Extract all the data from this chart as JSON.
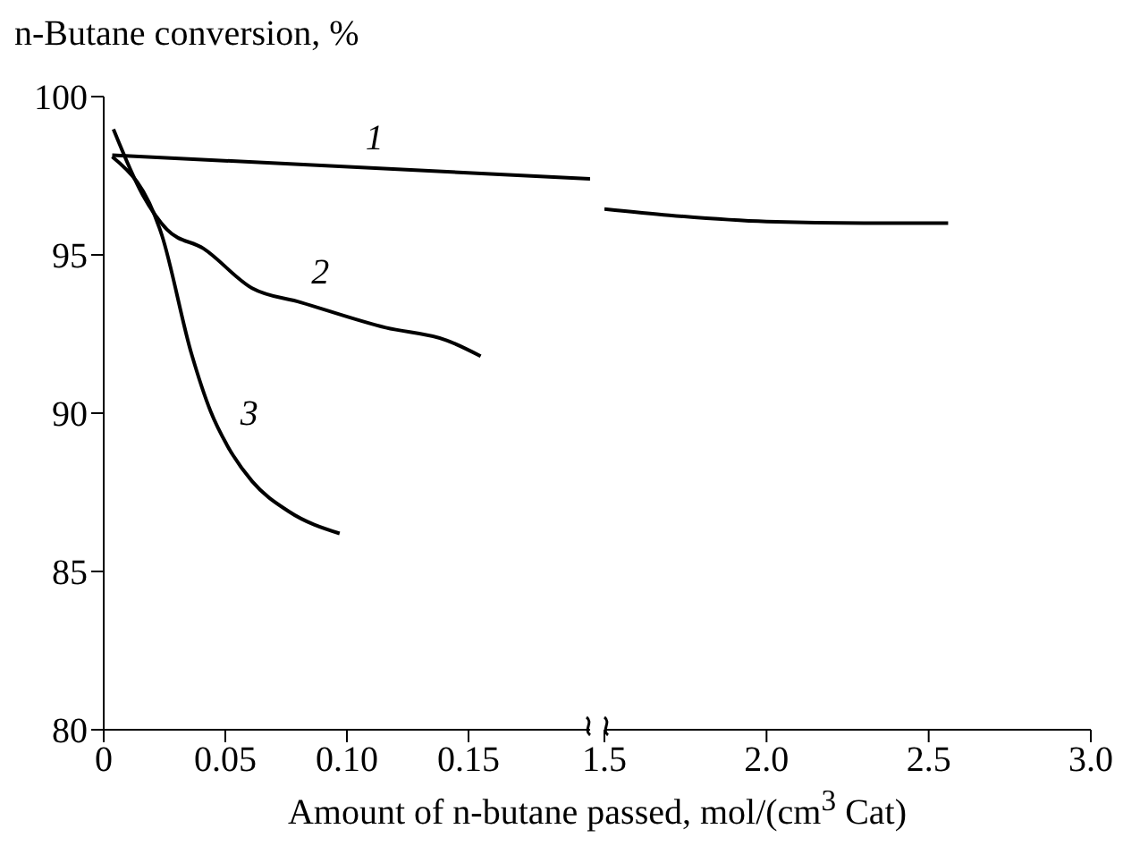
{
  "chart_data": [
    {
      "type": "line",
      "ylabel": "n-Butane conversion, %",
      "xlabel": "Amount of n-butane passed, mol/(cm$^{3}$ Cat)",
      "xlim": [
        0,
        0.2
      ],
      "xticks": [
        0,
        0.05,
        {
          "value": 0.1,
          "label": "0.10"
        },
        0.15
      ],
      "ylim": [
        80,
        100
      ],
      "yticks": [
        80,
        85,
        90,
        95,
        100
      ],
      "grid": false,
      "legend": false,
      "series": [
        {
          "name": "1",
          "color": "#000000",
          "x": [
            0.0035,
            0.2
          ],
          "values": [
            98.15,
            97.4
          ]
        },
        {
          "name": "2",
          "color": "#000000",
          "x": [
            0.004,
            0.016,
            0.026,
            0.041,
            0.061,
            0.081,
            0.116,
            0.141,
            0.155
          ],
          "values": [
            98.97,
            96.9,
            95.8,
            95.2,
            93.95,
            93.5,
            92.7,
            92.3,
            91.8
          ]
        },
        {
          "name": "3",
          "color": "#000000",
          "x": [
            0.0035,
            0.024,
            0.036,
            0.044,
            0.051,
            0.061,
            0.076,
            0.097
          ],
          "values": [
            98.1,
            95.6,
            91.9,
            90.05,
            88.95,
            87.85,
            86.9,
            86.2
          ]
        }
      ]
    },
    {
      "type": "line",
      "xlim": [
        1.5,
        3.0
      ],
      "xticks": [
        1.5,
        {
          "value": 2,
          "label": "2.0"
        },
        2.5,
        {
          "value": 3,
          "label": "3.0"
        }
      ],
      "ylim": [
        80,
        100
      ],
      "tick_labels": "x",
      "grid": false,
      "legend": false,
      "series": [
        {
          "color": "#000000",
          "x": [
            1.5,
            1.7,
            2.0,
            2.3,
            2.56
          ],
          "values": [
            96.45,
            96.25,
            96.05,
            96.0,
            96.0
          ]
        }
      ]
    }
  ]
}
